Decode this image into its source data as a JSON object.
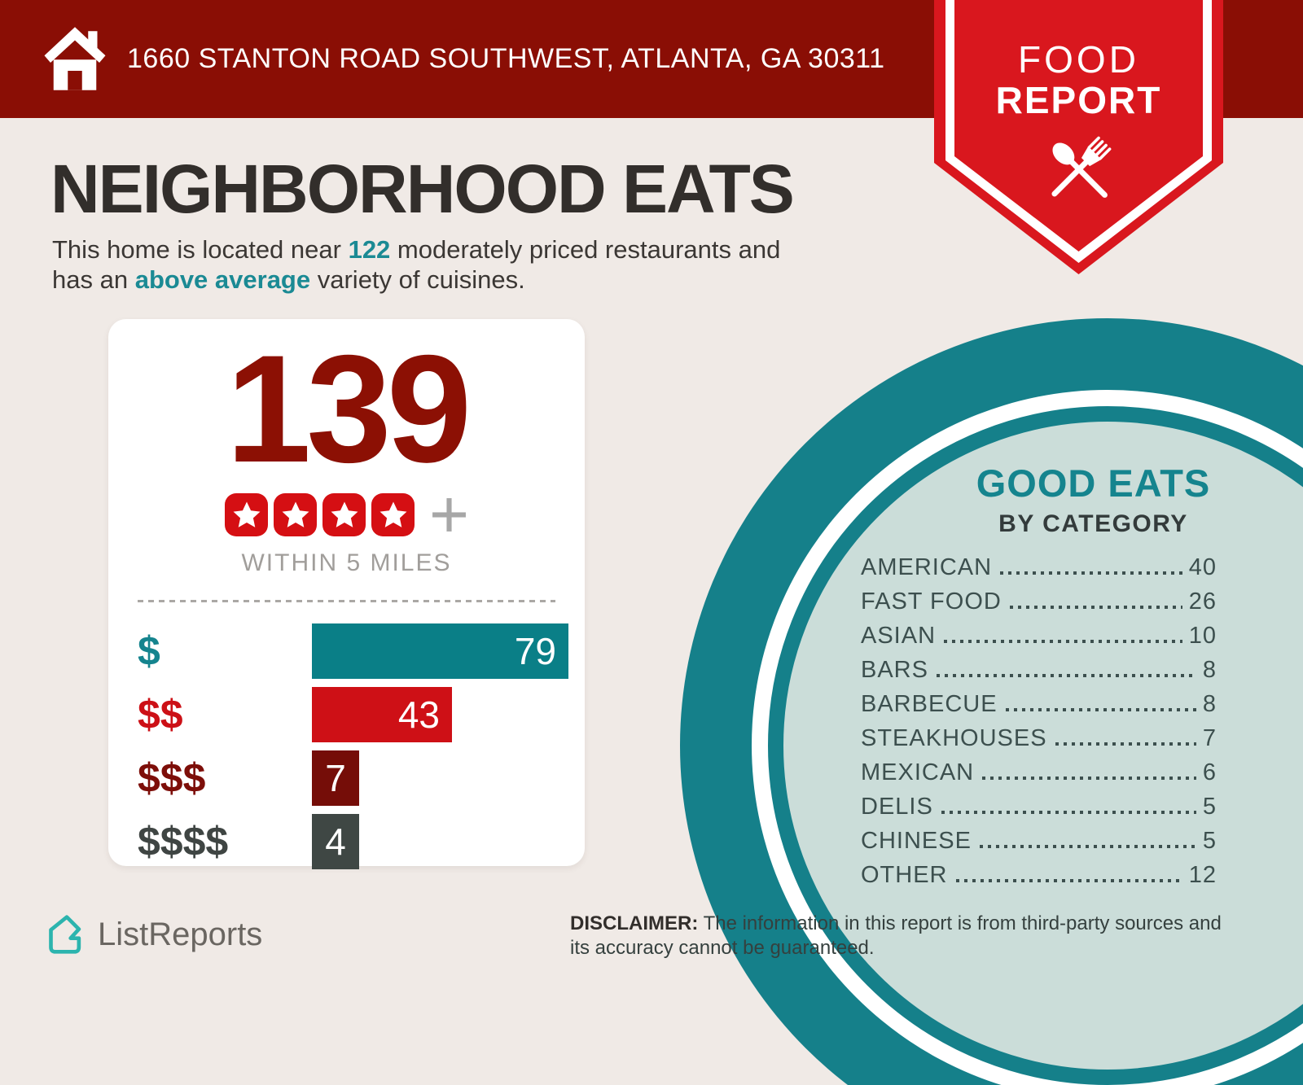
{
  "colors": {
    "background": "#F0EAE6",
    "banner_red": "#8A0E05",
    "ribbon_red": "#D9171E",
    "accent_teal": "#1B8A94",
    "circle_teal": "#15808A",
    "circle_interior": "#CBDDD9",
    "count_red": "#8C1004",
    "star_red": "#D50F13"
  },
  "header": {
    "address": "1660 STANTON ROAD SOUTHWEST, ATLANTA, GA 30311"
  },
  "ribbon": {
    "line1": "FOOD",
    "line2": "REPORT"
  },
  "intro": {
    "title": "NEIGHBORHOOD EATS",
    "lines": [
      [
        {
          "t": "This home is located near "
        },
        {
          "t": "122",
          "hl": true
        },
        {
          "t": " moderately priced restaurants and"
        }
      ],
      [
        {
          "t": "has an "
        },
        {
          "t": "above average",
          "hl": true
        },
        {
          "t": " variety of cuisines."
        }
      ]
    ]
  },
  "summary_card": {
    "count": "139",
    "stars": 4,
    "plus": "+",
    "caption": "WITHIN 5 MILES",
    "price_bars": [
      {
        "label": "$",
        "value": 79,
        "bar_color": "#0A7F87",
        "label_color": "#15848E"
      },
      {
        "label": "$$",
        "value": 43,
        "bar_color": "#CE1016",
        "label_color": "#CC1016"
      },
      {
        "label": "$$$",
        "value": 7,
        "bar_color": "#750D08",
        "label_color": "#7D0E09"
      },
      {
        "label": "$$$$",
        "value": 4,
        "bar_color": "#3F4744",
        "label_color": "#3F4543"
      }
    ]
  },
  "good_eats": {
    "title": "GOOD EATS",
    "subtitle": "BY CATEGORY",
    "items": [
      {
        "label": "AMERICAN",
        "value": 40
      },
      {
        "label": "FAST FOOD",
        "value": 26
      },
      {
        "label": "ASIAN",
        "value": 10
      },
      {
        "label": "BARS",
        "value": 8
      },
      {
        "label": "BARBECUE",
        "value": 8
      },
      {
        "label": "STEAKHOUSES",
        "value": 7
      },
      {
        "label": "MEXICAN",
        "value": 6
      },
      {
        "label": "DELIS",
        "value": 5
      },
      {
        "label": "CHINESE",
        "value": 5
      },
      {
        "label": "OTHER",
        "value": 12
      }
    ]
  },
  "footer": {
    "brand": "ListReports",
    "disclaimer_label": "DISCLAIMER:",
    "disclaimer_text": " The information in this report is from third-party sources and its accuracy cannot be guaranteed."
  },
  "chart_data": [
    {
      "type": "bar",
      "orientation": "horizontal",
      "title": "Restaurants by price level",
      "subtitle": "WITHIN 5 MILES",
      "total": 139,
      "rating_stars": 4,
      "categories": [
        "$",
        "$$",
        "$$$",
        "$$$$"
      ],
      "values": [
        79,
        43,
        7,
        4
      ],
      "colors": [
        "#0A7F87",
        "#CE1016",
        "#750D08",
        "#3F4744"
      ],
      "value_labels_shown": true,
      "axis_shown": false
    },
    {
      "type": "table",
      "title": "GOOD EATS BY CATEGORY",
      "categories": [
        "AMERICAN",
        "FAST FOOD",
        "ASIAN",
        "BARS",
        "BARBECUE",
        "STEAKHOUSES",
        "MEXICAN",
        "DELIS",
        "CHINESE",
        "OTHER"
      ],
      "values": [
        40,
        26,
        10,
        8,
        8,
        7,
        6,
        5,
        5,
        12
      ]
    }
  ]
}
